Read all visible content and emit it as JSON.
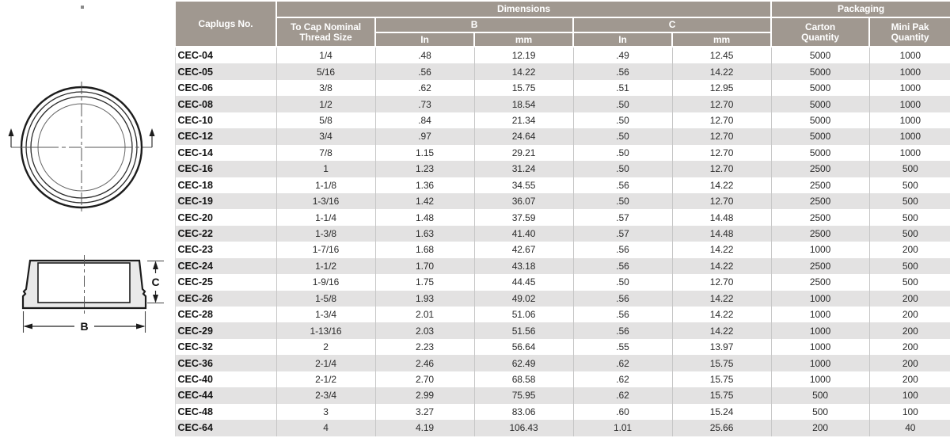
{
  "table": {
    "header": {
      "caplugs_no": "Caplugs No.",
      "dimensions": "Dimensions",
      "packaging": "Packaging",
      "thread_size": "To Cap Nominal\nThread Size",
      "b": "B",
      "c": "C",
      "in_b": "In",
      "mm_b": "mm",
      "in_c": "In",
      "mm_c": "mm",
      "carton_qty": "Carton\nQuantity",
      "mini_pak_qty": "Mini Pak\nQuantity"
    },
    "columns": [
      "Caplugs No.",
      "To Cap Nominal Thread Size",
      "B In",
      "B mm",
      "C In",
      "C mm",
      "Carton Quantity",
      "Mini Pak Quantity"
    ],
    "rows": [
      [
        "CEC-04",
        "1/4",
        ".48",
        "12.19",
        ".49",
        "12.45",
        "5000",
        "1000"
      ],
      [
        "CEC-05",
        "5/16",
        ".56",
        "14.22",
        ".56",
        "14.22",
        "5000",
        "1000"
      ],
      [
        "CEC-06",
        "3/8",
        ".62",
        "15.75",
        ".51",
        "12.95",
        "5000",
        "1000"
      ],
      [
        "CEC-08",
        "1/2",
        ".73",
        "18.54",
        ".50",
        "12.70",
        "5000",
        "1000"
      ],
      [
        "CEC-10",
        "5/8",
        ".84",
        "21.34",
        ".50",
        "12.70",
        "5000",
        "1000"
      ],
      [
        "CEC-12",
        "3/4",
        ".97",
        "24.64",
        ".50",
        "12.70",
        "5000",
        "1000"
      ],
      [
        "CEC-14",
        "7/8",
        "1.15",
        "29.21",
        ".50",
        "12.70",
        "5000",
        "1000"
      ],
      [
        "CEC-16",
        "1",
        "1.23",
        "31.24",
        ".50",
        "12.70",
        "2500",
        "500"
      ],
      [
        "CEC-18",
        "1-1/8",
        "1.36",
        "34.55",
        ".56",
        "14.22",
        "2500",
        "500"
      ],
      [
        "CEC-19",
        "1-3/16",
        "1.42",
        "36.07",
        ".50",
        "12.70",
        "2500",
        "500"
      ],
      [
        "CEC-20",
        "1-1/4",
        "1.48",
        "37.59",
        ".57",
        "14.48",
        "2500",
        "500"
      ],
      [
        "CEC-22",
        "1-3/8",
        "1.63",
        "41.40",
        ".57",
        "14.48",
        "2500",
        "500"
      ],
      [
        "CEC-23",
        "1-7/16",
        "1.68",
        "42.67",
        ".56",
        "14.22",
        "1000",
        "200"
      ],
      [
        "CEC-24",
        "1-1/2",
        "1.70",
        "43.18",
        ".56",
        "14.22",
        "2500",
        "500"
      ],
      [
        "CEC-25",
        "1-9/16",
        "1.75",
        "44.45",
        ".50",
        "12.70",
        "2500",
        "500"
      ],
      [
        "CEC-26",
        "1-5/8",
        "1.93",
        "49.02",
        ".56",
        "14.22",
        "1000",
        "200"
      ],
      [
        "CEC-28",
        "1-3/4",
        "2.01",
        "51.06",
        ".56",
        "14.22",
        "1000",
        "200"
      ],
      [
        "CEC-29",
        "1-13/16",
        "2.03",
        "51.56",
        ".56",
        "14.22",
        "1000",
        "200"
      ],
      [
        "CEC-32",
        "2",
        "2.23",
        "56.64",
        ".55",
        "13.97",
        "1000",
        "200"
      ],
      [
        "CEC-36",
        "2-1/4",
        "2.46",
        "62.49",
        ".62",
        "15.75",
        "1000",
        "200"
      ],
      [
        "CEC-40",
        "2-1/2",
        "2.70",
        "68.58",
        ".62",
        "15.75",
        "1000",
        "200"
      ],
      [
        "CEC-44",
        "2-3/4",
        "2.99",
        "75.95",
        ".62",
        "15.75",
        "500",
        "100"
      ],
      [
        "CEC-48",
        "3",
        "3.27",
        "83.06",
        ".60",
        "15.24",
        "500",
        "100"
      ],
      [
        "CEC-64",
        "4",
        "4.19",
        "106.43",
        "1.01",
        "25.66",
        "200",
        "40"
      ]
    ]
  },
  "diagram": {
    "dim_b_label": "B",
    "dim_c_label": "C"
  },
  "colors": {
    "header_bg": "#a09890",
    "row_alt": "#e3e2e2",
    "line": "#231f20",
    "diagram_fill": "#e9e9e9"
  }
}
